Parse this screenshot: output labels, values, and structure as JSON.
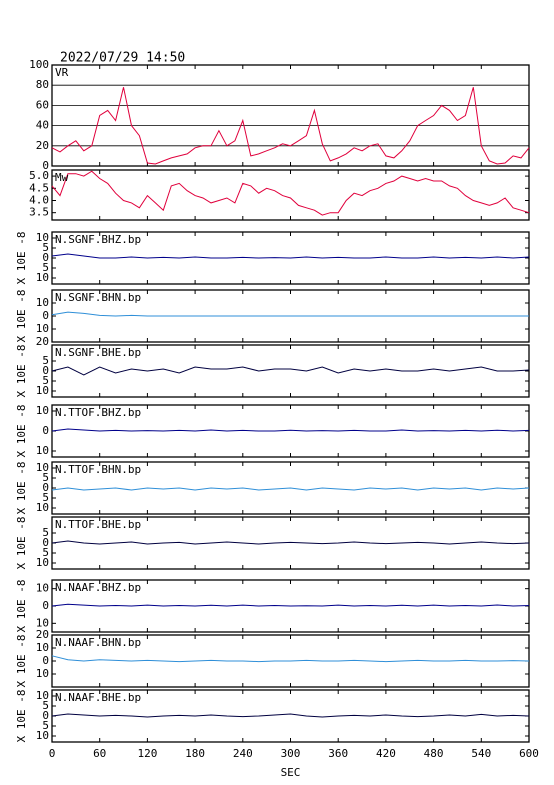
{
  "header": {
    "timestamp": "2022/07/29  14:50"
  },
  "chart_data": [
    {
      "type": "line",
      "label": "VR",
      "xlim": [
        0,
        600
      ],
      "ylim": [
        0,
        100
      ],
      "yticks": [
        0,
        20,
        40,
        60,
        80,
        100
      ],
      "grid": true,
      "x": [
        0,
        10,
        20,
        30,
        40,
        50,
        60,
        70,
        80,
        90,
        100,
        110,
        120,
        130,
        140,
        150,
        160,
        170,
        180,
        190,
        200,
        210,
        220,
        230,
        240,
        250,
        260,
        270,
        280,
        290,
        300,
        310,
        320,
        330,
        340,
        350,
        360,
        370,
        380,
        390,
        400,
        410,
        420,
        430,
        440,
        450,
        460,
        470,
        480,
        490,
        500,
        510,
        520,
        530,
        540,
        550,
        560,
        570,
        580,
        590,
        600
      ],
      "series": [
        {
          "color": "#e0003c",
          "values": [
            18,
            14,
            20,
            25,
            15,
            20,
            50,
            55,
            45,
            78,
            40,
            30,
            3,
            2,
            5,
            8,
            10,
            12,
            18,
            20,
            20,
            35,
            20,
            25,
            45,
            10,
            12,
            15,
            18,
            22,
            20,
            25,
            30,
            55,
            22,
            5,
            8,
            12,
            18,
            15,
            20,
            22,
            10,
            8,
            15,
            25,
            40,
            45,
            50,
            60,
            55,
            45,
            50,
            78,
            20,
            5,
            2,
            3,
            10,
            8,
            18
          ]
        }
      ]
    },
    {
      "type": "line",
      "label": "Mw",
      "xlim": [
        0,
        600
      ],
      "ylim": [
        3.2,
        5.25
      ],
      "yticks": [
        {
          "value": 3.5,
          "label": "3.5"
        },
        {
          "value": 4,
          "label": "4.0"
        },
        {
          "value": 4.5,
          "label": "4.5"
        },
        {
          "value": 5,
          "label": "5.0"
        }
      ],
      "grid": false,
      "x": [
        0,
        10,
        20,
        30,
        40,
        50,
        60,
        70,
        80,
        90,
        100,
        110,
        120,
        130,
        140,
        150,
        160,
        170,
        180,
        190,
        200,
        210,
        220,
        230,
        240,
        250,
        260,
        270,
        280,
        290,
        300,
        310,
        320,
        330,
        340,
        350,
        360,
        370,
        380,
        390,
        400,
        410,
        420,
        430,
        440,
        450,
        460,
        470,
        480,
        490,
        500,
        510,
        520,
        530,
        540,
        550,
        560,
        570,
        580,
        590,
        600
      ],
      "series": [
        {
          "color": "#e0003c",
          "values": [
            4.6,
            4.2,
            5.1,
            5.1,
            5.0,
            5.2,
            4.9,
            4.7,
            4.3,
            4.0,
            3.9,
            3.7,
            4.2,
            3.9,
            3.6,
            4.6,
            4.7,
            4.4,
            4.2,
            4.1,
            3.9,
            4.0,
            4.1,
            3.9,
            4.7,
            4.6,
            4.3,
            4.5,
            4.4,
            4.2,
            4.1,
            3.8,
            3.7,
            3.6,
            3.4,
            3.5,
            3.5,
            4.0,
            4.3,
            4.2,
            4.4,
            4.5,
            4.7,
            4.8,
            5.0,
            4.9,
            4.8,
            4.9,
            4.8,
            4.8,
            4.6,
            4.5,
            4.2,
            4.0,
            3.9,
            3.8,
            3.9,
            4.1,
            3.7,
            3.6,
            3.5
          ]
        }
      ]
    },
    {
      "type": "line",
      "label": "N.SGNF.BHZ.bp",
      "ylabel": "X 10E -8",
      "xlim": [
        0,
        600
      ],
      "ylim": [
        -13,
        13
      ],
      "yticks": [
        10,
        5,
        0,
        {
          "value": -5,
          "label": "5"
        },
        {
          "value": -10,
          "label": "10"
        }
      ],
      "x": [
        0,
        20,
        40,
        60,
        80,
        100,
        120,
        140,
        160,
        180,
        200,
        220,
        240,
        260,
        280,
        300,
        320,
        340,
        360,
        380,
        400,
        420,
        440,
        460,
        480,
        500,
        520,
        540,
        560,
        580,
        600
      ],
      "series": [
        {
          "color": "#00008b",
          "values": [
            1,
            2,
            1,
            0,
            0,
            0.5,
            0,
            0.3,
            0,
            0.5,
            0,
            0,
            0.3,
            0,
            0.2,
            0,
            0.5,
            0,
            0.3,
            0,
            0,
            0.5,
            0,
            0,
            0.5,
            0,
            0.3,
            0,
            0.5,
            0,
            0.5
          ]
        }
      ]
    },
    {
      "type": "line",
      "label": "N.SGNF.BHN.bp",
      "ylabel": "X 10E -8",
      "xlim": [
        0,
        600
      ],
      "ylim": [
        -20,
        20
      ],
      "yticks": [
        10,
        0,
        {
          "value": -10,
          "label": "10"
        },
        {
          "value": -20,
          "label": "20"
        }
      ],
      "x": [
        0,
        20,
        40,
        60,
        80,
        100,
        120,
        140,
        160,
        180,
        200,
        220,
        240,
        260,
        280,
        300,
        320,
        340,
        360,
        380,
        400,
        420,
        440,
        460,
        480,
        500,
        520,
        540,
        560,
        580,
        600
      ],
      "series": [
        {
          "color": "#2f8fd8",
          "values": [
            1,
            3,
            2,
            0.5,
            0,
            0.5,
            0,
            0,
            0,
            0,
            0,
            0,
            0,
            0,
            0,
            0,
            0,
            0,
            0,
            0,
            0,
            0,
            0,
            0,
            0,
            0,
            0,
            0,
            0,
            0,
            0
          ]
        }
      ]
    },
    {
      "type": "line",
      "label": "N.SGNF.BHE.bp",
      "ylabel": "X 10E -8",
      "xlim": [
        0,
        600
      ],
      "ylim": [
        -13,
        13
      ],
      "yticks": [
        5,
        0,
        {
          "value": -5,
          "label": "5"
        },
        {
          "value": -10,
          "label": "10"
        }
      ],
      "x": [
        0,
        20,
        40,
        60,
        80,
        100,
        120,
        140,
        160,
        180,
        200,
        220,
        240,
        260,
        280,
        300,
        320,
        340,
        360,
        380,
        400,
        420,
        440,
        460,
        480,
        500,
        520,
        540,
        560,
        580,
        600
      ],
      "series": [
        {
          "color": "#000040",
          "values": [
            0,
            2,
            -2,
            2,
            -1,
            1,
            0,
            1,
            -1,
            2,
            1,
            1,
            2,
            0,
            1,
            1,
            0,
            2,
            -1,
            1,
            0,
            1,
            0,
            0,
            1,
            0,
            1,
            2,
            0,
            0,
            0.5
          ]
        }
      ]
    },
    {
      "type": "line",
      "label": "N.TTOF.BHZ.bp",
      "ylabel": "X 10E -8",
      "xlim": [
        0,
        600
      ],
      "ylim": [
        -13,
        13
      ],
      "yticks": [
        10,
        0,
        {
          "value": -10,
          "label": "10"
        }
      ],
      "x": [
        0,
        20,
        40,
        60,
        80,
        100,
        120,
        140,
        160,
        180,
        200,
        220,
        240,
        260,
        280,
        300,
        320,
        340,
        360,
        380,
        400,
        420,
        440,
        460,
        480,
        500,
        520,
        540,
        560,
        580,
        600
      ],
      "series": [
        {
          "color": "#00008b",
          "values": [
            0,
            1,
            0.5,
            0,
            0.3,
            0,
            0.2,
            0,
            0.3,
            0,
            0.5,
            0,
            0.3,
            0,
            0,
            0.4,
            0,
            0.2,
            0,
            0.3,
            0,
            0,
            0.5,
            0,
            0.2,
            0,
            0.3,
            0,
            0.4,
            0,
            0.3
          ]
        }
      ]
    },
    {
      "type": "line",
      "label": "N.TTOF.BHN.bp",
      "ylabel": "X 10E -8",
      "xlim": [
        0,
        600
      ],
      "ylim": [
        -13,
        13
      ],
      "yticks": [
        10,
        5,
        0,
        {
          "value": -5,
          "label": "5"
        },
        {
          "value": -10,
          "label": "10"
        }
      ],
      "x": [
        0,
        20,
        40,
        60,
        80,
        100,
        120,
        140,
        160,
        180,
        200,
        220,
        240,
        260,
        280,
        300,
        320,
        340,
        360,
        380,
        400,
        420,
        440,
        460,
        480,
        500,
        520,
        540,
        560,
        580,
        600
      ],
      "series": [
        {
          "color": "#2f8fd8",
          "values": [
            -1,
            0,
            -1,
            -0.5,
            0,
            -1,
            0,
            -0.5,
            0,
            -1,
            0,
            -0.5,
            0,
            -1,
            -0.5,
            0,
            -1,
            0,
            -0.5,
            -1,
            0,
            -0.5,
            0,
            -1,
            0,
            -0.5,
            0,
            -1,
            0,
            -0.5,
            0
          ]
        }
      ]
    },
    {
      "type": "line",
      "label": "N.TTOF.BHE.bp",
      "ylabel": "X 10E -8",
      "xlim": [
        0,
        600
      ],
      "ylim": [
        -13,
        13
      ],
      "yticks": [
        5,
        0,
        {
          "value": -5,
          "label": "5"
        },
        {
          "value": -10,
          "label": "10"
        }
      ],
      "x": [
        0,
        20,
        40,
        60,
        80,
        100,
        120,
        140,
        160,
        180,
        200,
        220,
        240,
        260,
        280,
        300,
        320,
        340,
        360,
        380,
        400,
        420,
        440,
        460,
        480,
        500,
        520,
        540,
        560,
        580,
        600
      ],
      "series": [
        {
          "color": "#000040",
          "values": [
            0,
            1,
            0,
            -0.5,
            0,
            0.5,
            -0.5,
            0,
            0.3,
            -0.5,
            0,
            0.5,
            0,
            -0.5,
            0,
            0.3,
            0,
            -0.3,
            0,
            0.5,
            0,
            -0.3,
            0,
            0.3,
            0,
            -0.5,
            0,
            0.5,
            0,
            -0.3,
            0
          ]
        }
      ]
    },
    {
      "type": "line",
      "label": "N.NAAF.BHZ.bp",
      "ylabel": "X 10E -8",
      "xlim": [
        0,
        600
      ],
      "ylim": [
        -15,
        15
      ],
      "yticks": [
        10,
        0,
        {
          "value": -10,
          "label": "10"
        }
      ],
      "x": [
        0,
        20,
        40,
        60,
        80,
        100,
        120,
        140,
        160,
        180,
        200,
        220,
        240,
        260,
        280,
        300,
        320,
        340,
        360,
        380,
        400,
        420,
        440,
        460,
        480,
        500,
        520,
        540,
        560,
        580,
        600
      ],
      "series": [
        {
          "color": "#00008b",
          "values": [
            0,
            1,
            0.5,
            0,
            0.3,
            0,
            0.5,
            0,
            0.3,
            0,
            0.4,
            0,
            0.5,
            0,
            0.3,
            0,
            0.2,
            0,
            0.5,
            0,
            0.3,
            0,
            0.4,
            0,
            0.5,
            0,
            0.3,
            0,
            0.6,
            0,
            0.3
          ]
        }
      ]
    },
    {
      "type": "line",
      "label": "N.NAAF.BHN.bp",
      "ylabel": "X 10E -8",
      "xlim": [
        0,
        600
      ],
      "ylim": [
        -20,
        20
      ],
      "yticks": [
        20,
        10,
        0,
        {
          "value": -10,
          "label": "10"
        }
      ],
      "x": [
        0,
        20,
        40,
        60,
        80,
        100,
        120,
        140,
        160,
        180,
        200,
        220,
        240,
        260,
        280,
        300,
        320,
        340,
        360,
        380,
        400,
        420,
        440,
        460,
        480,
        500,
        520,
        540,
        560,
        580,
        600
      ],
      "series": [
        {
          "color": "#2f8fd8",
          "values": [
            4,
            1,
            0,
            1,
            0.5,
            0,
            0.5,
            0,
            -0.5,
            0,
            0.5,
            0,
            0,
            -0.5,
            0,
            0,
            0.5,
            0,
            0,
            0.5,
            0,
            -0.5,
            0,
            0.5,
            0,
            0,
            0.5,
            0,
            0,
            0.3,
            0
          ]
        }
      ]
    },
    {
      "type": "line",
      "label": "N.NAAF.BHE.bp",
      "ylabel": "X 10E -8",
      "xlim": [
        0,
        600
      ],
      "ylim": [
        -13,
        13
      ],
      "yticks": [
        10,
        5,
        0,
        {
          "value": -5,
          "label": "5"
        },
        {
          "value": -10,
          "label": "10"
        }
      ],
      "x": [
        0,
        20,
        40,
        60,
        80,
        100,
        120,
        140,
        160,
        180,
        200,
        220,
        240,
        260,
        280,
        300,
        320,
        340,
        360,
        380,
        400,
        420,
        440,
        460,
        480,
        500,
        520,
        540,
        560,
        580,
        600
      ],
      "series": [
        {
          "color": "#000040",
          "values": [
            0,
            1,
            0.5,
            0,
            0.3,
            0,
            -0.5,
            0,
            0.3,
            0,
            0.5,
            0,
            -0.3,
            0,
            0.5,
            1,
            0,
            -0.5,
            0,
            0.3,
            0,
            0.5,
            0,
            -0.3,
            0,
            0.5,
            0,
            0.8,
            0,
            0.3,
            0
          ]
        }
      ],
      "xticks": [
        0,
        60,
        120,
        180,
        240,
        300,
        360,
        420,
        480,
        540,
        600
      ],
      "xlabel": "SEC"
    }
  ]
}
